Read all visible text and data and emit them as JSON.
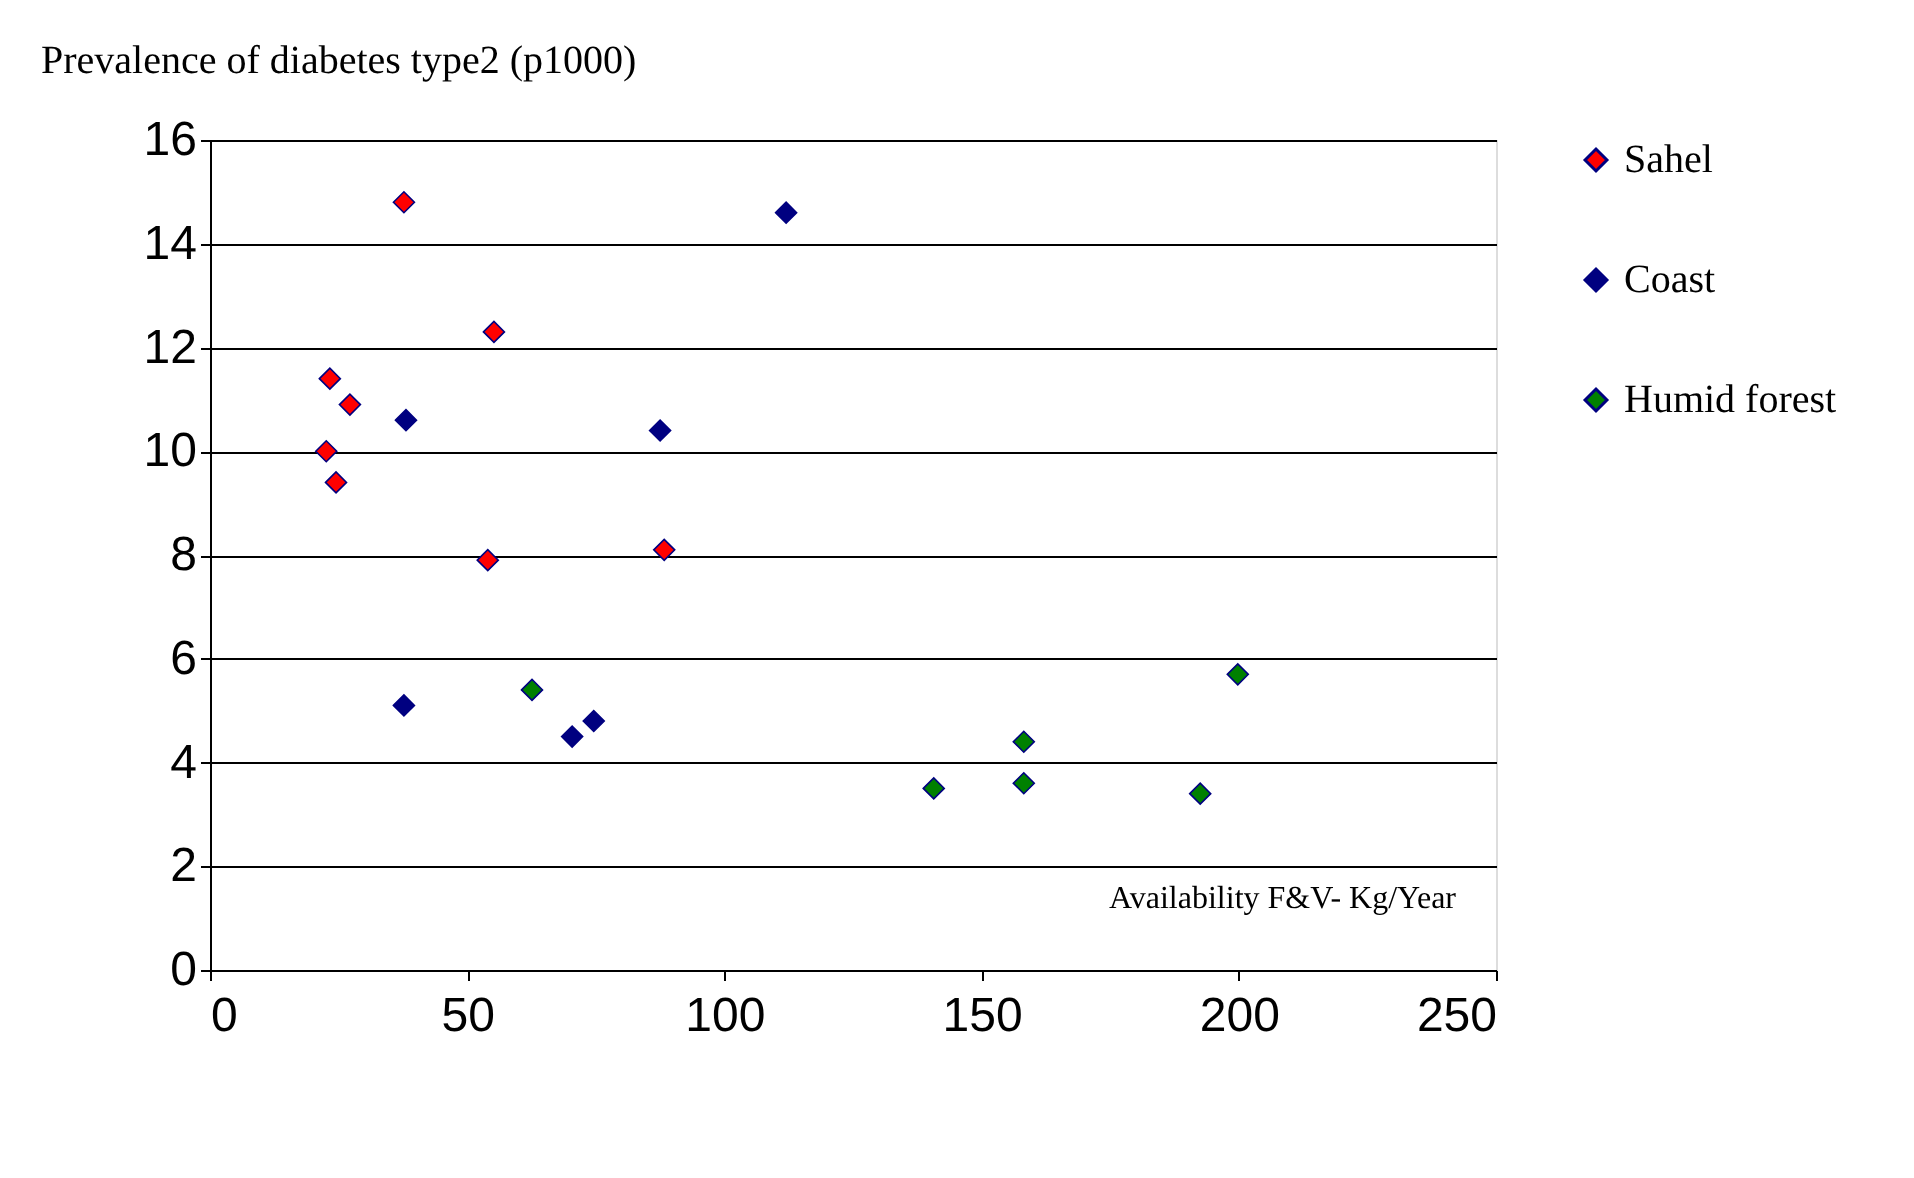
{
  "chart_data": {
    "type": "scatter",
    "ylabel": "Prevalence of diabetes type2 (p1000)",
    "xlabel": "Availability F&V- Kg/Year",
    "series": [
      {
        "name": "Sahel",
        "color": "#ff0000",
        "x": [
          37.7,
          55.2,
          23.3,
          27.2,
          22.6,
          24.5,
          54.0,
          88.3
        ],
        "values": [
          14.8,
          12.3,
          11.4,
          10.9,
          10.0,
          9.4,
          7.9,
          8.1
        ]
      },
      {
        "name": "Coast",
        "color": "#000080",
        "x": [
          112,
          38.1,
          87.5,
          37.7,
          70.4,
          74.6
        ],
        "values": [
          14.6,
          10.6,
          10.4,
          5.1,
          4.5,
          4.8
        ]
      },
      {
        "name": "Humid forest",
        "color": "#008000",
        "x": [
          62.6,
          140.7,
          158.2,
          158.2,
          192.5,
          199.8
        ],
        "values": [
          5.4,
          3.5,
          4.4,
          3.6,
          3.4,
          5.7
        ]
      }
    ],
    "xlim": [
      0,
      250
    ],
    "xticks": [
      0,
      50,
      100,
      150,
      200,
      250
    ],
    "ylim": [
      0,
      16
    ],
    "yticks": [
      0,
      2,
      4,
      6,
      8,
      10,
      12,
      14,
      16
    ],
    "grid": "y",
    "legend": "right",
    "marker": "diamond"
  }
}
